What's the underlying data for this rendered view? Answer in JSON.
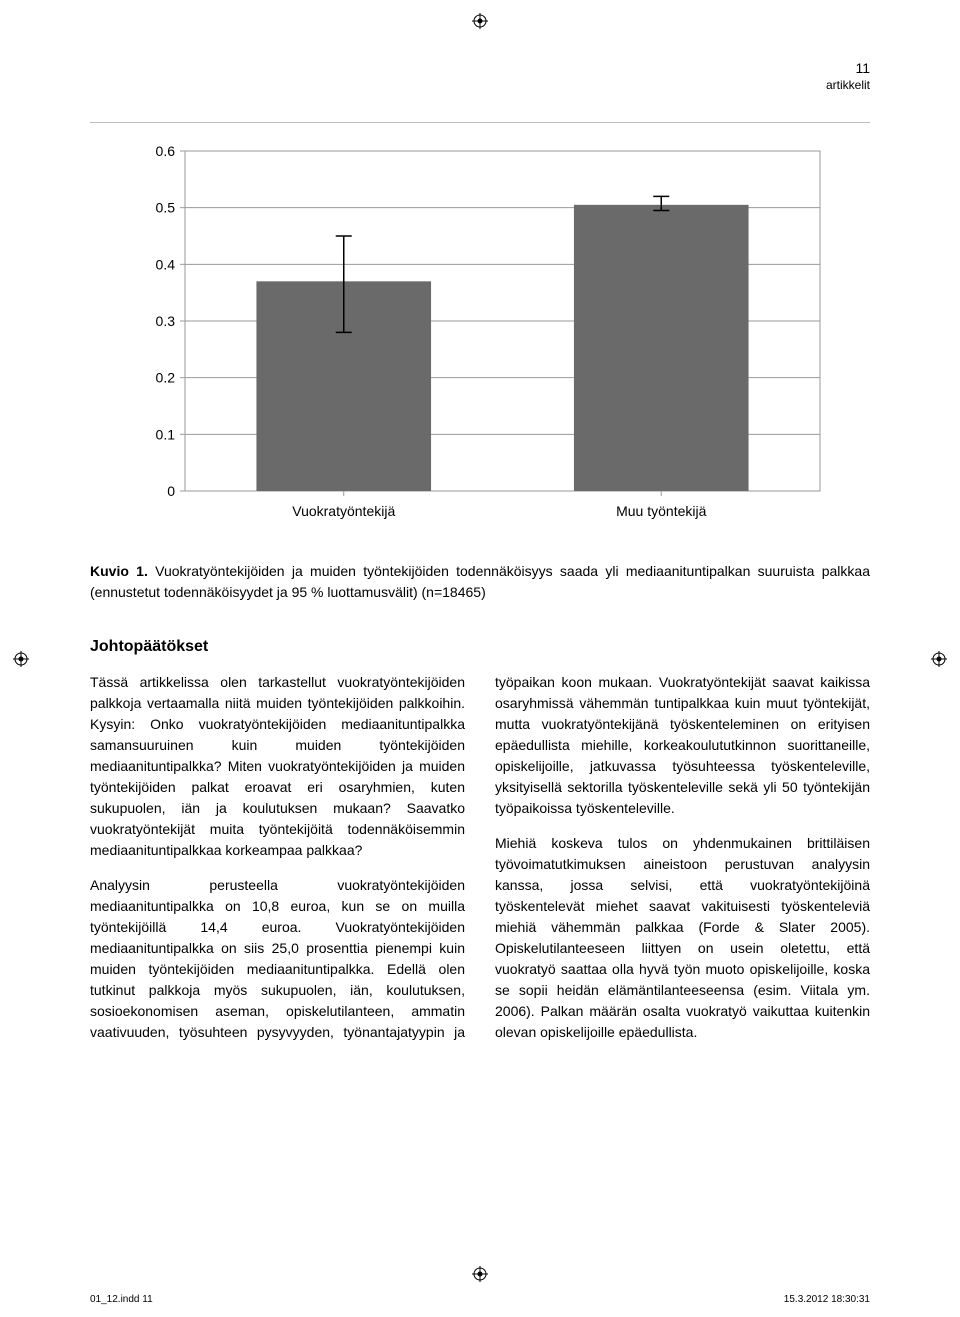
{
  "header": {
    "page_number": "11",
    "section_label": "artikkelit"
  },
  "chart": {
    "type": "bar",
    "background_color": "#ffffff",
    "plot_border_color": "#9a9a9a",
    "grid_color": "#9a9a9a",
    "bar_color": "#6a6a6a",
    "error_bar_color": "#000000",
    "text_color": "#000000",
    "tick_fontsize": 14,
    "label_fontsize": 14,
    "ylim": [
      0,
      0.6
    ],
    "yticks": [
      0,
      0.1,
      0.2,
      0.3,
      0.4,
      0.5,
      0.6
    ],
    "ytick_labels": [
      "0",
      "0.1",
      "0.2",
      "0.3",
      "0.4",
      "0.5",
      "0.6"
    ],
    "categories": [
      "Vuokratyöntekijä",
      "Muu työntekijä"
    ],
    "values": [
      0.37,
      0.505
    ],
    "error_low": [
      0.28,
      0.495
    ],
    "error_high": [
      0.45,
      0.52
    ],
    "bar_width": 0.55
  },
  "caption": {
    "label": "Kuvio 1.",
    "text": "Vuokratyöntekijöiden ja muiden työntekijöiden todennäköisyys saada yli mediaanituntipalkan suuruista palkkaa (ennustetut todennäköisyydet ja 95 % luottamusvälit) (n=18465)"
  },
  "heading": "Johtopäätökset",
  "body": {
    "p1": "Tässä artikkelissa olen tarkastellut vuokratyöntekijöiden palkkoja vertaamalla niitä muiden työntekijöiden palkkoihin. Kysyin: Onko vuokratyöntekijöiden mediaanituntipalkka samansuuruinen kuin muiden työntekijöiden mediaanituntipalkka? Miten vuokratyöntekijöiden ja muiden työntekijöiden palkat eroavat eri osaryhmien, kuten sukupuolen, iän ja koulutuksen mukaan? Saavatko vuokratyöntekijät muita työntekijöitä todennäköisemmin mediaanituntipalkkaa korkeampaa palkkaa?",
    "p2": "Analyysin perusteella vuokratyöntekijöiden mediaanituntipalkka on 10,8 euroa, kun se on muilla työntekijöillä 14,4 euroa. Vuokratyöntekijöiden mediaanituntipalkka on siis 25,0 prosenttia pienempi kuin muiden työntekijöiden mediaanituntipalkka. Edellä olen tutkinut palkkoja myös sukupuolen, iän, koulutuksen, sosioekonomisen aseman, opiskelutilanteen, ammatin vaativuuden, työsuhteen pysyvyyden, työnantajatyypin ja työpaikan koon mukaan. Vuokratyöntekijät saavat kaikissa osaryhmissä vähemmän tuntipalkkaa kuin muut työntekijät, mutta vuokratyöntekijänä työskenteleminen on erityisen epäedullista miehille, korkeakoulututkinnon suorittaneille, opiskelijoille, jatkuvassa työsuhteessa työskenteleville, yksityisellä sektorilla työskenteleville sekä yli 50 työntekijän työpaikoissa työskenteleville.",
    "p3": "Miehiä koskeva tulos on yhdenmukainen brittiläisen työvoimatutkimuksen aineistoon perustuvan analyysin kanssa, jossa selvisi, että vuokratyöntekijöinä työskentelevät miehet saavat vakituisesti työskenteleviä miehiä vähemmän palkkaa (Forde & Slater 2005). Opiskelutilanteeseen liittyen on usein oletettu, että vuokratyö saattaa olla hyvä työn muoto opiskelijoille, koska se sopii heidän elämäntilanteeseensa (esim. Viitala ym. 2006). Palkan määrän osalta vuokratyö vaikuttaa kuitenkin olevan opiskelijoille epäedullista."
  },
  "footer": {
    "left": "01_12.indd   11",
    "right": "15.3.2012   18:30:31"
  }
}
